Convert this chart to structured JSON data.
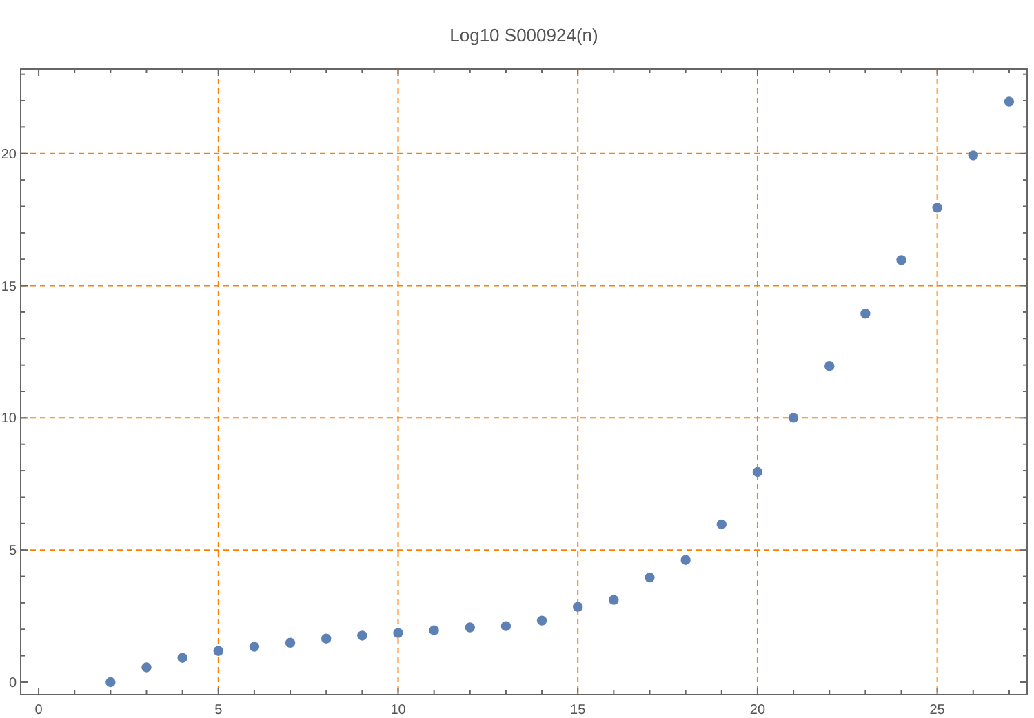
{
  "chart_data": {
    "type": "scatter",
    "title": "Log10 S000924(n)",
    "x": [
      2,
      3,
      4,
      5,
      6,
      7,
      8,
      9,
      10,
      11,
      12,
      13,
      14,
      15,
      16,
      17,
      18,
      19,
      20,
      21,
      22,
      23,
      24,
      25,
      26,
      27
    ],
    "values": [
      0,
      0.56,
      0.92,
      1.18,
      1.34,
      1.49,
      1.65,
      1.76,
      1.86,
      1.96,
      2.07,
      2.12,
      2.33,
      2.85,
      3.11,
      3.96,
      4.62,
      5.97,
      7.95,
      10,
      11.96,
      13.94,
      15.97,
      17.95,
      19.93,
      21.96
    ],
    "color": "#5e81b5",
    "marker": "circle",
    "grid": true,
    "xlim": [
      -0.5,
      27.5
    ],
    "ylim": [
      -0.47,
      23.2
    ],
    "xticks": [
      0,
      {
        "value": 1,
        "label": null
      },
      {
        "value": 2,
        "label": null
      },
      {
        "value": 3,
        "label": null
      },
      {
        "value": 4,
        "label": null
      },
      5,
      {
        "value": 6,
        "label": null
      },
      {
        "value": 7,
        "label": null
      },
      {
        "value": 8,
        "label": null
      },
      {
        "value": 9,
        "label": null
      },
      10,
      {
        "value": 11,
        "label": null
      },
      {
        "value": 12,
        "label": null
      },
      {
        "value": 13,
        "label": null
      },
      {
        "value": 14,
        "label": null
      },
      15,
      {
        "value": 16,
        "label": null
      },
      {
        "value": 17,
        "label": null
      },
      {
        "value": 18,
        "label": null
      },
      {
        "value": 19,
        "label": null
      },
      20,
      {
        "value": 21,
        "label": null
      },
      {
        "value": 22,
        "label": null
      },
      {
        "value": 23,
        "label": null
      },
      {
        "value": 24,
        "label": null
      },
      25,
      {
        "value": 26,
        "label": null
      },
      {
        "value": 27,
        "label": null
      }
    ],
    "yticks": [
      0,
      {
        "value": 1,
        "label": null
      },
      {
        "value": 2,
        "label": null
      },
      {
        "value": 3,
        "label": null
      },
      {
        "value": 4,
        "label": null
      },
      5,
      {
        "value": 6,
        "label": null
      },
      {
        "value": 7,
        "label": null
      },
      {
        "value": 8,
        "label": null
      },
      {
        "value": 9,
        "label": null
      },
      10,
      {
        "value": 11,
        "label": null
      },
      {
        "value": 12,
        "label": null
      },
      {
        "value": 13,
        "label": null
      },
      {
        "value": 14,
        "label": null
      },
      15,
      {
        "value": 16,
        "label": null
      },
      {
        "value": 17,
        "label": null
      },
      {
        "value": 18,
        "label": null
      },
      {
        "value": 19,
        "label": null
      },
      20,
      {
        "value": 21,
        "label": null
      },
      {
        "value": 22,
        "label": null
      },
      {
        "value": 23,
        "label": null
      }
    ]
  }
}
